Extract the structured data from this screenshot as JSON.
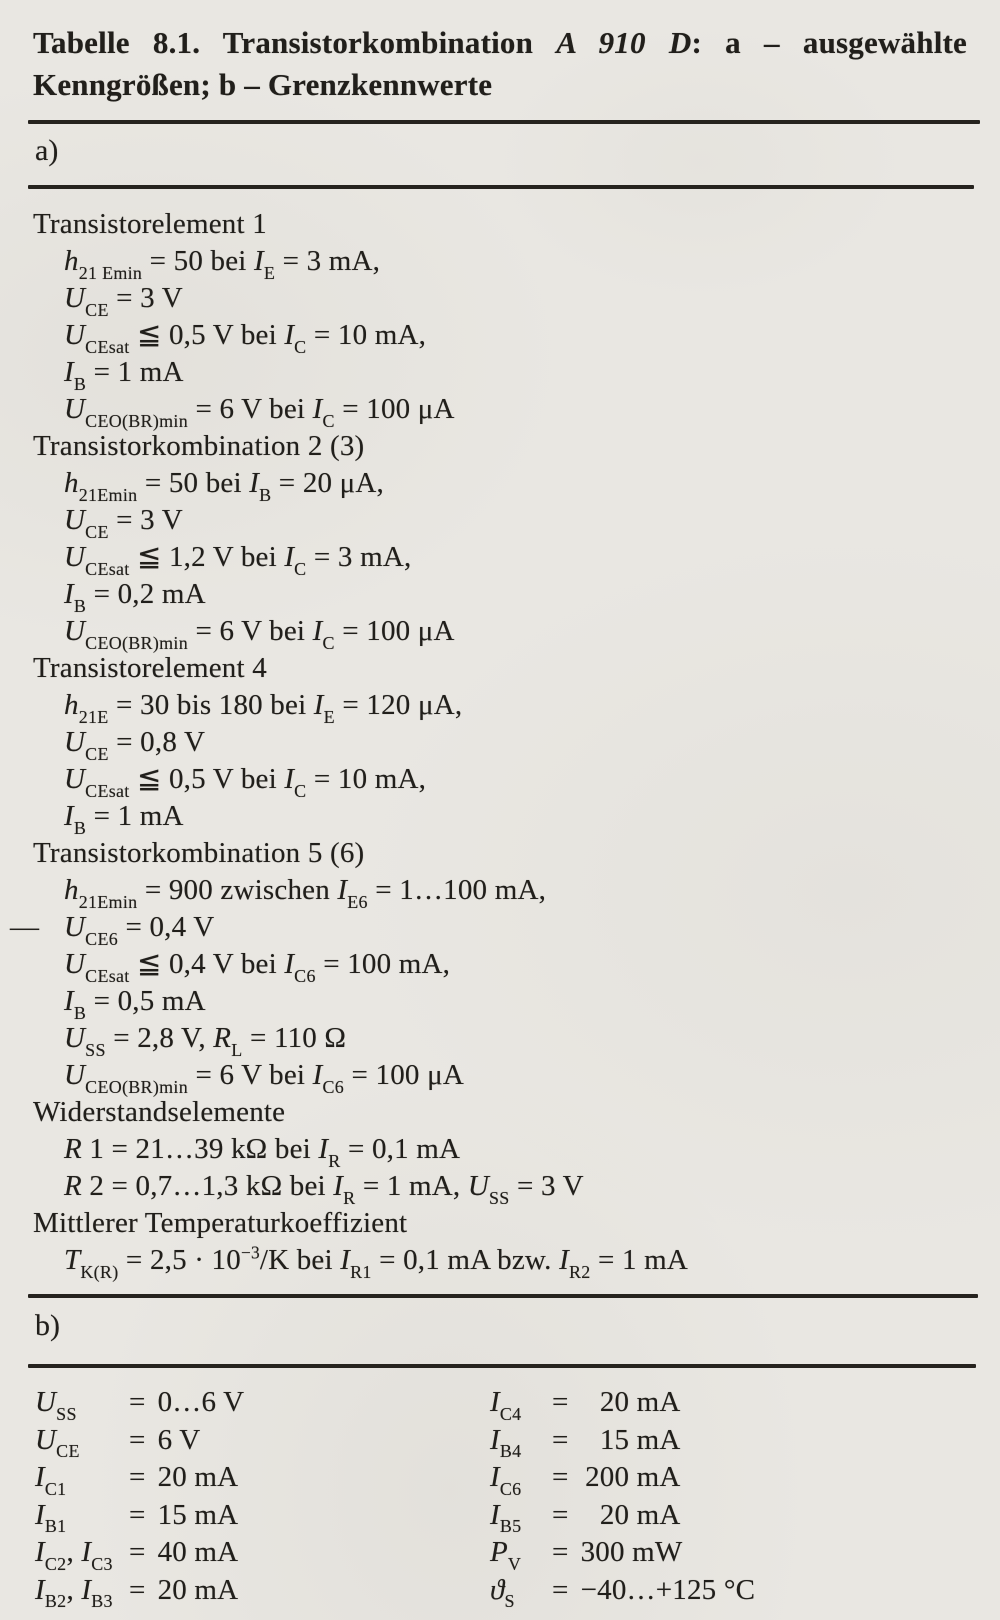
{
  "paper": {
    "bg": "#e9e7e2",
    "ink": "#211f1b",
    "rule_color": "#26231e"
  },
  "caption": {
    "line1": [
      [
        "b",
        "Tabelle 8.1. Transistorkombination "
      ],
      [
        "bi",
        "A 910 D"
      ],
      [
        "b",
        ": a – ausgewählte"
      ]
    ],
    "line2": [
      [
        "b",
        "Kenngrößen; b – Grenzkennwerte"
      ]
    ]
  },
  "sections": {
    "a": {
      "label": "a)"
    },
    "b": {
      "label": "b)"
    }
  },
  "spec_lines": [
    {
      "indent": false,
      "tokens": [
        [
          "t",
          "Transistorelement 1"
        ]
      ]
    },
    {
      "indent": true,
      "tokens": [
        [
          "i",
          "h"
        ],
        [
          "sub",
          "21 Emin"
        ],
        [
          "t",
          " = 50 bei "
        ],
        [
          "i",
          "I"
        ],
        [
          "sub",
          "E"
        ],
        [
          "t",
          " = 3 mA,"
        ]
      ]
    },
    {
      "indent": true,
      "tokens": [
        [
          "i",
          "U"
        ],
        [
          "sub",
          "CE"
        ],
        [
          "t",
          " = 3 V"
        ]
      ]
    },
    {
      "indent": true,
      "tokens": [
        [
          "i",
          "U"
        ],
        [
          "sub",
          "CEsat"
        ],
        [
          "t",
          " ≦ 0,5 V bei "
        ],
        [
          "i",
          "I"
        ],
        [
          "sub",
          "C"
        ],
        [
          "t",
          " = 10 mA,"
        ]
      ]
    },
    {
      "indent": true,
      "tokens": [
        [
          "i",
          "I"
        ],
        [
          "sub",
          "B"
        ],
        [
          "t",
          " = 1 mA"
        ]
      ]
    },
    {
      "indent": true,
      "tokens": [
        [
          "i",
          "U"
        ],
        [
          "sub",
          "CEO(BR)min"
        ],
        [
          "t",
          " = 6 V bei "
        ],
        [
          "i",
          "I"
        ],
        [
          "sub",
          "C"
        ],
        [
          "t",
          " = 100 μA"
        ]
      ]
    },
    {
      "indent": false,
      "tokens": [
        [
          "t",
          "Transistorkombination 2 (3)"
        ]
      ]
    },
    {
      "indent": true,
      "tokens": [
        [
          "i",
          "h"
        ],
        [
          "sub",
          "21Emin"
        ],
        [
          "t",
          " = 50 bei "
        ],
        [
          "i",
          "I"
        ],
        [
          "sub",
          "B"
        ],
        [
          "t",
          " = 20 μA,"
        ]
      ]
    },
    {
      "indent": true,
      "tokens": [
        [
          "i",
          "U"
        ],
        [
          "sub",
          "CE"
        ],
        [
          "t",
          " = 3 V"
        ]
      ]
    },
    {
      "indent": true,
      "tokens": [
        [
          "i",
          "U"
        ],
        [
          "sub",
          "CEsat"
        ],
        [
          "t",
          " ≦ 1,2 V bei "
        ],
        [
          "i",
          "I"
        ],
        [
          "sub",
          "C"
        ],
        [
          "t",
          " = 3 mA,"
        ]
      ]
    },
    {
      "indent": true,
      "tokens": [
        [
          "i",
          "I"
        ],
        [
          "sub",
          "B"
        ],
        [
          "t",
          " = 0,2 mA"
        ]
      ]
    },
    {
      "indent": true,
      "tokens": [
        [
          "i",
          "U"
        ],
        [
          "sub",
          "CEO(BR)min"
        ],
        [
          "t",
          " = 6 V bei "
        ],
        [
          "i",
          "I"
        ],
        [
          "sub",
          "C"
        ],
        [
          "t",
          " = 100 μA"
        ]
      ]
    },
    {
      "indent": false,
      "tokens": [
        [
          "t",
          "Transistorelement 4"
        ]
      ]
    },
    {
      "indent": true,
      "tokens": [
        [
          "i",
          "h"
        ],
        [
          "sub",
          "21E"
        ],
        [
          "t",
          " = 30 bis 180 bei "
        ],
        [
          "i",
          "I"
        ],
        [
          "sub",
          "E"
        ],
        [
          "t",
          " = 120 μA,"
        ]
      ]
    },
    {
      "indent": true,
      "tokens": [
        [
          "i",
          "U"
        ],
        [
          "sub",
          "CE"
        ],
        [
          "t",
          " = 0,8 V"
        ]
      ]
    },
    {
      "indent": true,
      "tokens": [
        [
          "i",
          "U"
        ],
        [
          "sub",
          "CEsat"
        ],
        [
          "t",
          " ≦ 0,5 V bei "
        ],
        [
          "i",
          "I"
        ],
        [
          "sub",
          "C"
        ],
        [
          "t",
          " = 10 mA,"
        ]
      ]
    },
    {
      "indent": true,
      "tokens": [
        [
          "i",
          "I"
        ],
        [
          "sub",
          "B"
        ],
        [
          "t",
          " = 1 mA"
        ]
      ]
    },
    {
      "indent": false,
      "tokens": [
        [
          "t",
          "Transistorkombination 5 (6)"
        ]
      ]
    },
    {
      "indent": true,
      "tokens": [
        [
          "i",
          "h"
        ],
        [
          "sub",
          "21Emin"
        ],
        [
          "t",
          " = 900 zwischen "
        ],
        [
          "i",
          "I"
        ],
        [
          "sub",
          "E6"
        ],
        [
          "t",
          " = 1…100 mA,"
        ]
      ]
    },
    {
      "indent": true,
      "dash": "—",
      "tokens": [
        [
          "i",
          "U"
        ],
        [
          "sub",
          "CE6"
        ],
        [
          "t",
          " = 0,4 V"
        ]
      ]
    },
    {
      "indent": true,
      "tokens": [
        [
          "i",
          "U"
        ],
        [
          "sub",
          "CEsat"
        ],
        [
          "t",
          " ≦ 0,4 V bei "
        ],
        [
          "i",
          "I"
        ],
        [
          "sub",
          "C6"
        ],
        [
          "t",
          " = 100 mA,"
        ]
      ]
    },
    {
      "indent": true,
      "tokens": [
        [
          "i",
          "I"
        ],
        [
          "sub",
          "B"
        ],
        [
          "t",
          " = 0,5 mA"
        ]
      ]
    },
    {
      "indent": true,
      "tokens": [
        [
          "i",
          "U"
        ],
        [
          "sub",
          "SS"
        ],
        [
          "t",
          " = 2,8 V, "
        ],
        [
          "i",
          "R"
        ],
        [
          "sub",
          "L"
        ],
        [
          "t",
          " = 110 Ω"
        ]
      ]
    },
    {
      "indent": true,
      "tokens": [
        [
          "i",
          "U"
        ],
        [
          "sub",
          "CEO(BR)min"
        ],
        [
          "t",
          " = 6 V bei "
        ],
        [
          "i",
          "I"
        ],
        [
          "sub",
          "C6"
        ],
        [
          "t",
          " = 100 μA"
        ]
      ]
    },
    {
      "indent": false,
      "tokens": [
        [
          "t",
          "Widerstandselemente"
        ]
      ]
    },
    {
      "indent": true,
      "tokens": [
        [
          "i",
          "R"
        ],
        [
          "t",
          " 1 = 21…39 kΩ bei "
        ],
        [
          "i",
          "I"
        ],
        [
          "sub",
          "R"
        ],
        [
          "t",
          " = 0,1 mA"
        ]
      ]
    },
    {
      "indent": true,
      "tokens": [
        [
          "i",
          "R"
        ],
        [
          "t",
          " 2 = 0,7…1,3 kΩ bei "
        ],
        [
          "i",
          "I"
        ],
        [
          "sub",
          "R"
        ],
        [
          "t",
          " = 1 mA, "
        ],
        [
          "i",
          "U"
        ],
        [
          "sub",
          "SS"
        ],
        [
          "t",
          " = 3 V"
        ]
      ]
    },
    {
      "indent": false,
      "tokens": [
        [
          "t",
          "Mittlerer Temperaturkoeffizient"
        ]
      ]
    },
    {
      "indent": true,
      "tokens": [
        [
          "i",
          "T"
        ],
        [
          "sub",
          "K(R)"
        ],
        [
          "t",
          " = 2,5 · 10"
        ],
        [
          "sup",
          "−3"
        ],
        [
          "t",
          "/K bei "
        ],
        [
          "i",
          "I"
        ],
        [
          "sub",
          "R1"
        ],
        [
          "t",
          " = 0,1 mA bzw. "
        ],
        [
          "i",
          "I"
        ],
        [
          "sub",
          "R2"
        ],
        [
          "t",
          " = 1 mA"
        ]
      ]
    }
  ],
  "limits": {
    "left": [
      {
        "sym": [
          [
            "i",
            "U"
          ],
          [
            "sub",
            "SS"
          ]
        ],
        "val": "0…6 V"
      },
      {
        "sym": [
          [
            "i",
            "U"
          ],
          [
            "sub",
            "CE"
          ]
        ],
        "val": "6 V"
      },
      {
        "sym": [
          [
            "i",
            "I"
          ],
          [
            "sub",
            "C1"
          ]
        ],
        "val": "20 mA"
      },
      {
        "sym": [
          [
            "i",
            "I"
          ],
          [
            "sub",
            "B1"
          ]
        ],
        "val": "15 mA"
      },
      {
        "sym": [
          [
            "i",
            "I"
          ],
          [
            "sub",
            "C2"
          ],
          [
            "t",
            ", "
          ],
          [
            "i",
            "I"
          ],
          [
            "sub",
            "C3"
          ]
        ],
        "val": "40 mA"
      },
      {
        "sym": [
          [
            "i",
            "I"
          ],
          [
            "sub",
            "B2"
          ],
          [
            "t",
            ", "
          ],
          [
            "i",
            "I"
          ],
          [
            "sub",
            "B3"
          ]
        ],
        "val": "20 mA"
      }
    ],
    "right": [
      {
        "sym": [
          [
            "i",
            "I"
          ],
          [
            "sub",
            "C4"
          ]
        ],
        "val": "20 mA"
      },
      {
        "sym": [
          [
            "i",
            "I"
          ],
          [
            "sub",
            "B4"
          ]
        ],
        "val": "15 mA"
      },
      {
        "sym": [
          [
            "i",
            "I"
          ],
          [
            "sub",
            "C6"
          ]
        ],
        "val": "200 mA"
      },
      {
        "sym": [
          [
            "i",
            "I"
          ],
          [
            "sub",
            "B5"
          ]
        ],
        "val": "20 mA"
      },
      {
        "sym": [
          [
            "i",
            "P"
          ],
          [
            "sub",
            "V"
          ]
        ],
        "val": "300 mW"
      },
      {
        "sym": [
          [
            "i",
            "ϑ"
          ],
          [
            "sub",
            "S"
          ]
        ],
        "val": "−40…+125 °C"
      }
    ]
  }
}
